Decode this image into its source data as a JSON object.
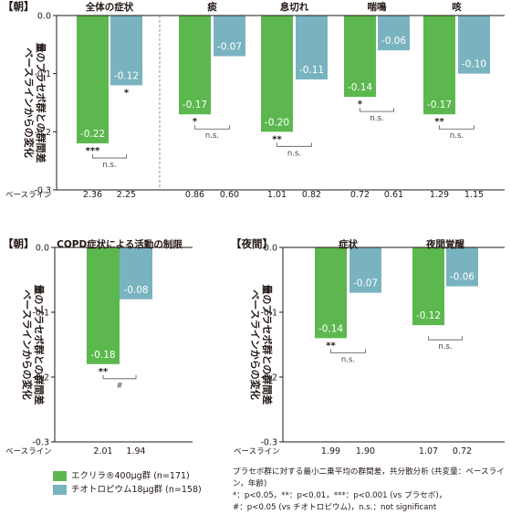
{
  "colors": {
    "drug1": "#5cb84e",
    "drug2": "#7ab3c0",
    "axis": "#231815",
    "text": "#231815"
  },
  "baseline_label": "ベースライン",
  "ylabel": "ベースラインからの変化量のプラセボ群との群間差",
  "legend": {
    "items": [
      {
        "label": "エクリラ®400μg群 (n=171)",
        "color": "#5cb84e"
      },
      {
        "label": "チオトロピウム18μg群 (n=158)",
        "color": "#7ab3c0"
      }
    ]
  },
  "note": [
    "プラセボ群に対する最小二乗平均の群間差，共分散分析 (共変量：ベースライン，年齢)",
    "*：p<0.05，**：p<0.01，***：p<0.001 (vs プラセボ)，",
    "#：p<0.05 (vs チオトロピウム)，n.s.：not significant"
  ],
  "chart_data": [
    {
      "type": "bar",
      "title": "【朝】",
      "ylim": [
        -0.3,
        0.0
      ],
      "yticks": [
        "0.0",
        "-0.1",
        "-0.2",
        "-0.3"
      ],
      "categories": [
        "全体の症状",
        "痰",
        "息切れ",
        "喘鳴",
        "咳"
      ],
      "series": [
        {
          "name": "エクリラ®400μg群 (n=171)",
          "values": [
            -0.22,
            -0.17,
            -0.2,
            -0.14,
            -0.17
          ],
          "labels": [
            "-0.22",
            "-0.17",
            "-0.20",
            "-0.14",
            "-0.17"
          ]
        },
        {
          "name": "チオトロピウム18μg群 (n=158)",
          "values": [
            -0.12,
            -0.07,
            -0.11,
            -0.06,
            -0.1
          ],
          "labels": [
            "-0.12",
            "-0.07",
            "-0.11",
            "-0.06",
            "-0.10"
          ]
        }
      ],
      "baseline": [
        [
          "2.36",
          "2.25"
        ],
        [
          "0.86",
          "0.60"
        ],
        [
          "1.01",
          "0.82"
        ],
        [
          "0.72",
          "0.61"
        ],
        [
          "1.29",
          "1.15"
        ]
      ],
      "sig1": [
        "***",
        "*",
        "**",
        "*",
        "**"
      ],
      "sig2": [
        "*",
        "",
        "",
        "",
        ""
      ],
      "pair": [
        "n.s.",
        "n.s.",
        "n.s.",
        "n.s.",
        "n.s."
      ],
      "separator_after": 0
    },
    {
      "type": "bar",
      "title": "【朝】",
      "ylim": [
        -0.3,
        0.0
      ],
      "yticks": [
        "0.0",
        "-0.1",
        "-0.2",
        "-0.3"
      ],
      "categories": [
        "COPD症状による活動の制限"
      ],
      "series": [
        {
          "name": "エクリラ®400μg群 (n=171)",
          "values": [
            -0.18
          ],
          "labels": [
            "-0.18"
          ]
        },
        {
          "name": "チオトロピウム18μg群 (n=158)",
          "values": [
            -0.08
          ],
          "labels": [
            "-0.08"
          ]
        }
      ],
      "baseline": [
        [
          "2.01",
          "1.94"
        ]
      ],
      "sig1": [
        "**"
      ],
      "sig2": [
        ""
      ],
      "pair": [
        "#"
      ]
    },
    {
      "type": "bar",
      "title": "【夜間】",
      "ylim": [
        -0.3,
        0.0
      ],
      "yticks": [
        "0.0",
        "-0.1",
        "-0.2",
        "-0.3"
      ],
      "categories": [
        "症状",
        "夜間覚醒"
      ],
      "series": [
        {
          "name": "エクリラ®400μg群 (n=171)",
          "values": [
            -0.14,
            -0.12
          ],
          "labels": [
            "-0.14",
            "-0.12"
          ]
        },
        {
          "name": "チオトロピウム18μg群 (n=158)",
          "values": [
            -0.07,
            -0.06
          ],
          "labels": [
            "-0.07",
            "-0.06"
          ]
        }
      ],
      "baseline": [
        [
          "1.99",
          "1.90"
        ],
        [
          "1.07",
          "0.72"
        ]
      ],
      "sig1": [
        "**",
        ""
      ],
      "sig2": [
        "",
        ""
      ],
      "pair": [
        "n.s.",
        "n.s."
      ]
    }
  ]
}
